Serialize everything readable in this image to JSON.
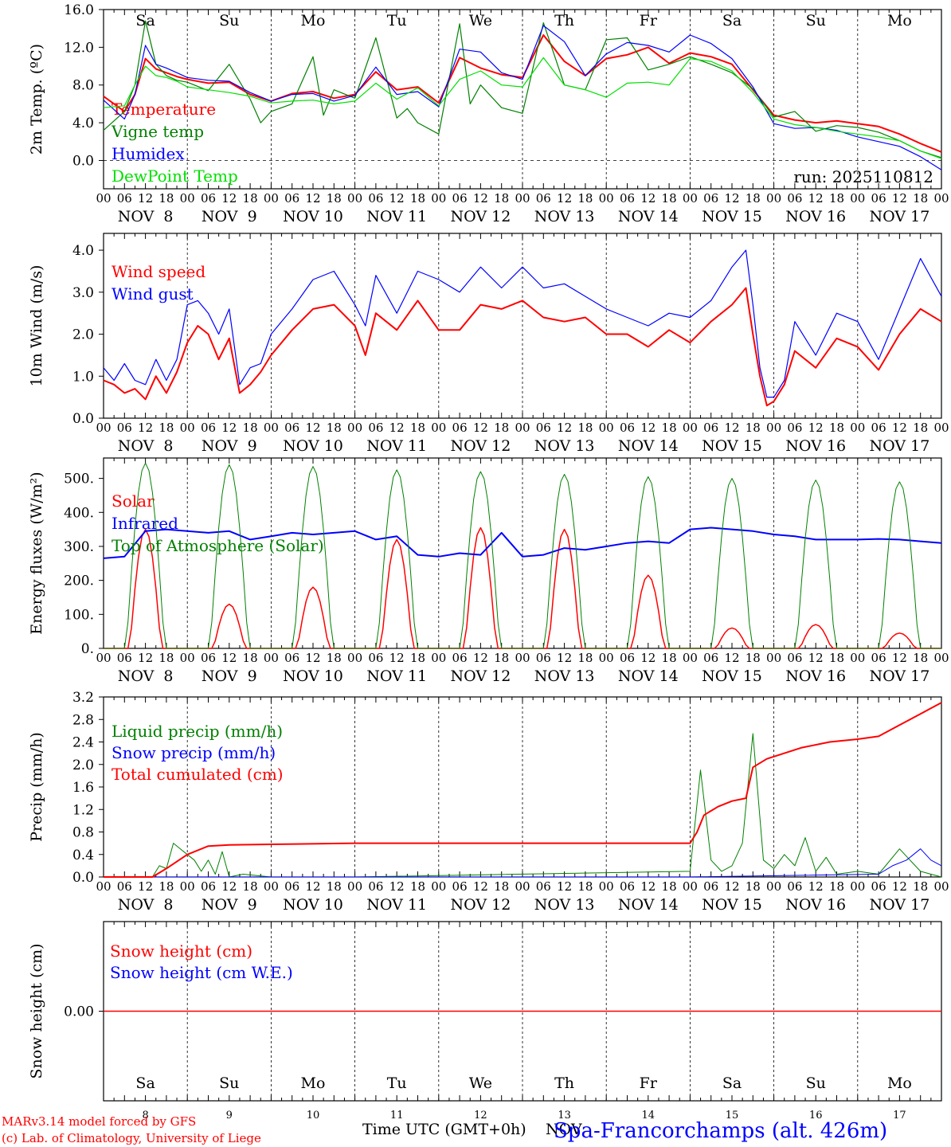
{
  "footer": {
    "model_line": "MARv3.14 model forced by GFS",
    "lab_line": "(c) Lab. of Climatology, University of Liege",
    "xlabel": "Time UTC (GMT+0h)",
    "month_overlap": "NOV",
    "station": "Spa-Francorchamps (alt. 426m)"
  },
  "colors": {
    "red": "#ff0000",
    "green": "#008000",
    "blue": "#0000ff",
    "lightgreen": "#00e000",
    "weekend": "#ff0000",
    "weekday": "#000000"
  },
  "time_axis": {
    "hour_ticks": [
      "00",
      "06",
      "12",
      "18"
    ],
    "final_tick": "00",
    "dates": [
      "NOV  8",
      "NOV  9",
      "NOV 10",
      "NOV 11",
      "NOV 12",
      "NOV 13",
      "NOV 14",
      "NOV 15",
      "NOV 16",
      "NOV 17"
    ],
    "weekdays": [
      "Sa",
      "Su",
      "Mo",
      "Tu",
      "We",
      "Th",
      "Fr",
      "Sa",
      "Su",
      "Mo"
    ],
    "weekend": [
      true,
      true,
      false,
      false,
      false,
      false,
      false,
      true,
      true,
      false
    ],
    "day_numbers": [
      "8",
      "9",
      "10",
      "11",
      "12",
      "13",
      "14",
      "15",
      "16",
      "17"
    ]
  },
  "chart_data": [
    {
      "type": "line",
      "title": "",
      "ylabel": "2m Temp. (ºC)",
      "ylim": [
        -3.0,
        16.0
      ],
      "yticks": [
        0,
        4,
        8,
        12,
        16
      ],
      "ytick_labels": [
        "0.0",
        "4.0",
        "8.0",
        "12.0",
        "16.0"
      ],
      "annotation": "run: 2025110812",
      "x_unit": "hours since NOV 8 00 UTC",
      "series": [
        {
          "name": "Temperature",
          "color": "red",
          "width": 2,
          "x": [
            0,
            6,
            9,
            12,
            15,
            18,
            21,
            24,
            30,
            36,
            42,
            48,
            54,
            60,
            66,
            72,
            78,
            84,
            90,
            96,
            102,
            108,
            114,
            120,
            126,
            132,
            138,
            144,
            150,
            156,
            162,
            168,
            174,
            180,
            186,
            192,
            198,
            204,
            210,
            216,
            222,
            228,
            234,
            240
          ],
          "y": [
            6.8,
            5.2,
            7.0,
            10.8,
            9.7,
            9.3,
            8.9,
            8.6,
            8.2,
            8.3,
            7.0,
            6.3,
            7.1,
            7.3,
            6.6,
            7.0,
            9.4,
            7.5,
            7.8,
            6.1,
            10.9,
            9.8,
            9.1,
            8.8,
            13.3,
            10.5,
            9.0,
            10.8,
            11.2,
            12.0,
            10.3,
            11.4,
            11.0,
            10.2,
            7.5,
            4.8,
            4.3,
            4.0,
            4.2,
            3.9,
            3.6,
            2.8,
            1.8,
            0.9
          ]
        },
        {
          "name": "Vigne temp",
          "color": "green",
          "width": 1.2,
          "x": [
            0,
            6,
            9,
            12,
            15,
            18,
            21,
            24,
            30,
            36,
            42,
            45,
            48,
            54,
            60,
            63,
            66,
            72,
            78,
            84,
            87,
            90,
            96,
            102,
            105,
            108,
            114,
            120,
            126,
            132,
            138,
            144,
            150,
            156,
            162,
            168,
            174,
            180,
            186,
            192,
            198,
            204,
            210,
            216,
            222,
            228,
            234,
            240
          ],
          "y": [
            3.2,
            5.2,
            8.0,
            14.8,
            10.2,
            9.0,
            8.5,
            8.3,
            7.4,
            10.2,
            6.5,
            4.0,
            5.2,
            6.0,
            11.0,
            4.8,
            7.5,
            6.6,
            13.0,
            4.5,
            5.5,
            4.0,
            2.8,
            14.5,
            6.0,
            8.0,
            5.6,
            5.0,
            14.6,
            8.0,
            7.5,
            12.8,
            13.0,
            9.6,
            10.2,
            11.0,
            10.2,
            9.3,
            7.6,
            4.6,
            5.2,
            3.1,
            3.7,
            3.5,
            3.0,
            2.1,
            1.0,
            0.3
          ]
        },
        {
          "name": "Humidex",
          "color": "blue",
          "width": 1.2,
          "x": [
            0,
            6,
            9,
            12,
            15,
            18,
            21,
            24,
            30,
            36,
            42,
            48,
            54,
            60,
            66,
            72,
            78,
            84,
            90,
            96,
            102,
            108,
            114,
            120,
            126,
            132,
            138,
            144,
            150,
            156,
            162,
            168,
            174,
            180,
            186,
            192,
            198,
            204,
            210,
            216,
            222,
            228,
            234,
            240
          ],
          "y": [
            6.4,
            4.4,
            7.0,
            12.2,
            10.2,
            9.8,
            9.3,
            8.8,
            8.5,
            8.4,
            7.2,
            6.3,
            7.0,
            7.1,
            6.3,
            6.9,
            9.9,
            7.0,
            7.3,
            5.7,
            11.8,
            11.5,
            9.3,
            8.6,
            14.3,
            12.6,
            9.0,
            11.3,
            12.5,
            12.2,
            11.5,
            13.3,
            12.4,
            10.8,
            7.8,
            3.9,
            3.4,
            3.5,
            3.2,
            2.5,
            2.0,
            1.5,
            0.4,
            -1.0
          ]
        },
        {
          "name": "DewPoint Temp",
          "color": "lightgreen",
          "width": 1.2,
          "x": [
            0,
            6,
            9,
            12,
            15,
            18,
            21,
            24,
            30,
            36,
            42,
            48,
            54,
            60,
            66,
            72,
            78,
            84,
            90,
            96,
            102,
            108,
            114,
            120,
            126,
            132,
            138,
            144,
            150,
            156,
            162,
            168,
            174,
            180,
            186,
            192,
            198,
            204,
            210,
            216,
            222,
            228,
            234,
            240
          ],
          "y": [
            5.6,
            5.8,
            8.0,
            10.0,
            9.0,
            8.8,
            8.4,
            7.8,
            7.5,
            7.2,
            6.8,
            6.1,
            6.3,
            6.4,
            6.0,
            6.3,
            8.2,
            6.5,
            7.7,
            5.8,
            8.6,
            9.5,
            8.0,
            7.8,
            10.9,
            8.0,
            7.5,
            6.7,
            8.2,
            8.3,
            8.0,
            10.8,
            10.5,
            9.5,
            7.2,
            4.4,
            3.8,
            3.5,
            3.1,
            2.8,
            2.5,
            2.1,
            1.0,
            0.2
          ]
        }
      ]
    },
    {
      "type": "line",
      "title": "",
      "ylabel": "10m Wind (m/s)",
      "ylim": [
        0.0,
        4.4
      ],
      "yticks": [
        0,
        1,
        2,
        3,
        4
      ],
      "ytick_labels": [
        "0.0",
        "1.0",
        "2.0",
        "3.0",
        "4.0"
      ],
      "x_unit": "hours since NOV 8 00 UTC",
      "series": [
        {
          "name": "Wind speed",
          "color": "red",
          "width": 2,
          "x": [
            0,
            3,
            6,
            9,
            12,
            15,
            18,
            21,
            24,
            27,
            30,
            33,
            36,
            39,
            42,
            45,
            48,
            54,
            60,
            66,
            72,
            75,
            78,
            84,
            90,
            96,
            102,
            108,
            114,
            120,
            126,
            132,
            138,
            144,
            150,
            156,
            162,
            168,
            174,
            180,
            184,
            186,
            188,
            190,
            192,
            195,
            198,
            204,
            210,
            216,
            222,
            228,
            234,
            240
          ],
          "y": [
            0.9,
            0.8,
            0.6,
            0.7,
            0.45,
            1.0,
            0.6,
            1.1,
            1.8,
            2.2,
            2.0,
            1.4,
            1.9,
            0.6,
            0.8,
            1.1,
            1.5,
            2.1,
            2.6,
            2.7,
            2.2,
            1.5,
            2.5,
            2.1,
            2.8,
            2.1,
            2.1,
            2.7,
            2.6,
            2.8,
            2.4,
            2.3,
            2.4,
            2.0,
            2.0,
            1.7,
            2.1,
            1.8,
            2.3,
            2.7,
            3.1,
            2.0,
            1.0,
            0.3,
            0.4,
            0.8,
            1.6,
            1.2,
            1.9,
            1.7,
            1.15,
            2.0,
            2.6,
            2.3
          ]
        },
        {
          "name": "Wind gust",
          "color": "blue",
          "width": 1.2,
          "x": [
            0,
            3,
            6,
            9,
            12,
            15,
            18,
            21,
            24,
            27,
            30,
            33,
            36,
            39,
            42,
            45,
            48,
            54,
            60,
            66,
            72,
            75,
            78,
            84,
            90,
            96,
            102,
            108,
            114,
            120,
            126,
            132,
            138,
            144,
            150,
            156,
            162,
            168,
            174,
            180,
            184,
            186,
            188,
            190,
            192,
            195,
            198,
            204,
            210,
            216,
            222,
            228,
            234,
            240
          ],
          "y": [
            1.2,
            0.9,
            1.3,
            0.9,
            0.8,
            1.4,
            0.9,
            1.4,
            2.7,
            2.8,
            2.5,
            2.0,
            2.6,
            0.8,
            1.2,
            1.3,
            2.0,
            2.6,
            3.3,
            3.5,
            2.7,
            2.2,
            3.4,
            2.5,
            3.5,
            3.3,
            3.0,
            3.6,
            3.1,
            3.6,
            3.1,
            3.2,
            2.9,
            2.6,
            2.4,
            2.2,
            2.5,
            2.4,
            2.8,
            3.6,
            4.0,
            2.7,
            1.2,
            0.5,
            0.5,
            0.9,
            2.3,
            1.5,
            2.5,
            2.3,
            1.4,
            2.6,
            3.8,
            2.9
          ]
        }
      ]
    },
    {
      "type": "line",
      "title": "",
      "ylabel": "Energy fluxes (W/m²)",
      "ylim": [
        0,
        560
      ],
      "yticks": [
        0,
        100,
        200,
        300,
        400,
        500
      ],
      "ytick_labels": [
        "0.",
        "100.",
        "200.",
        "300.",
        "400.",
        "500."
      ],
      "x_unit": "hours since NOV 8 00 UTC",
      "series": [
        {
          "name": "Solar",
          "color": "red",
          "width": 1.5,
          "peaks": [
            350,
            130,
            180,
            320,
            355,
            350,
            215,
            60,
            70,
            45
          ]
        },
        {
          "name": "Infrared",
          "color": "blue",
          "width": 2,
          "x": [
            0,
            6,
            12,
            18,
            24,
            30,
            36,
            42,
            48,
            54,
            60,
            66,
            72,
            78,
            84,
            90,
            96,
            102,
            108,
            114,
            120,
            126,
            132,
            138,
            144,
            150,
            156,
            162,
            168,
            174,
            180,
            186,
            192,
            198,
            204,
            210,
            216,
            222,
            228,
            234,
            240
          ],
          "y": [
            265,
            270,
            345,
            350,
            345,
            340,
            345,
            320,
            330,
            340,
            335,
            340,
            345,
            320,
            330,
            275,
            270,
            280,
            275,
            340,
            270,
            275,
            295,
            290,
            300,
            310,
            315,
            310,
            350,
            355,
            350,
            345,
            335,
            330,
            320,
            320,
            320,
            322,
            320,
            315,
            310
          ]
        },
        {
          "name": "Top of Atmosphere (Solar)",
          "color": "green",
          "width": 1,
          "peaks": [
            545,
            540,
            535,
            525,
            520,
            512,
            505,
            500,
            495,
            490
          ]
        }
      ]
    },
    {
      "type": "line",
      "title": "",
      "ylabel": "Precip (mm/h)",
      "ylim": [
        0.0,
        3.2
      ],
      "yticks": [
        0.0,
        0.4,
        0.8,
        1.2,
        1.6,
        2.0,
        2.4,
        2.8,
        3.2
      ],
      "ytick_labels": [
        "0.0",
        "0.4",
        "0.8",
        "1.2",
        "1.6",
        "2.0",
        "2.4",
        "2.8",
        "3.2"
      ],
      "x_unit": "hours since NOV 8 00 UTC",
      "series": [
        {
          "name": "Liquid precip (mm/h)",
          "color": "green",
          "width": 1,
          "x": [
            0,
            14,
            16,
            18,
            20,
            22,
            24,
            26,
            28,
            30,
            32,
            34,
            36,
            40,
            48,
            60,
            72,
            168,
            171,
            174,
            177,
            180,
            183,
            186,
            189,
            192,
            195,
            198,
            201,
            204,
            207,
            210,
            216,
            222,
            228,
            231,
            234,
            237,
            240
          ],
          "y": [
            0,
            0,
            0.2,
            0.15,
            0.6,
            0.5,
            0.4,
            0.3,
            0.1,
            0.3,
            0.05,
            0.45,
            0,
            0.05,
            0,
            0,
            0,
            0.1,
            1.9,
            0.3,
            0.1,
            0.2,
            0.6,
            2.55,
            0.3,
            0.15,
            0.4,
            0.2,
            0.7,
            0.1,
            0.35,
            0.05,
            0.1,
            0.05,
            0.5,
            0.3,
            0.1,
            0.05,
            0
          ]
        },
        {
          "name": "Snow precip (mm/h)",
          "color": "blue",
          "width": 1,
          "x": [
            0,
            168,
            222,
            226,
            230,
            234,
            237,
            240
          ],
          "y": [
            0,
            0,
            0.05,
            0.2,
            0.3,
            0.5,
            0.3,
            0.2
          ]
        },
        {
          "name": "Total cumulated (cm)",
          "color": "red",
          "width": 2,
          "x": [
            0,
            14,
            18,
            24,
            30,
            36,
            48,
            72,
            120,
            168,
            170,
            172,
            176,
            180,
            184,
            186,
            190,
            200,
            208,
            216,
            222,
            228,
            234,
            240
          ],
          "y": [
            0,
            0,
            0.15,
            0.4,
            0.55,
            0.57,
            0.58,
            0.6,
            0.6,
            0.6,
            0.8,
            1.1,
            1.25,
            1.35,
            1.4,
            1.95,
            2.1,
            2.3,
            2.4,
            2.45,
            2.5,
            2.7,
            2.9,
            3.1
          ]
        }
      ]
    },
    {
      "type": "line",
      "title": "",
      "ylabel": "Snow height (cm)",
      "ylim": [
        -1.0,
        1.0
      ],
      "yticks": [
        0
      ],
      "ytick_labels": [
        "0.00"
      ],
      "x_unit": "hours since NOV 8 00 UTC",
      "series": [
        {
          "name": "Snow height (cm)",
          "color": "red",
          "width": 1.5,
          "x": [
            0,
            240
          ],
          "y": [
            0,
            0
          ]
        },
        {
          "name": "Snow height (cm W.E.)",
          "color": "blue",
          "width": 1,
          "x": [],
          "y": []
        }
      ]
    }
  ]
}
